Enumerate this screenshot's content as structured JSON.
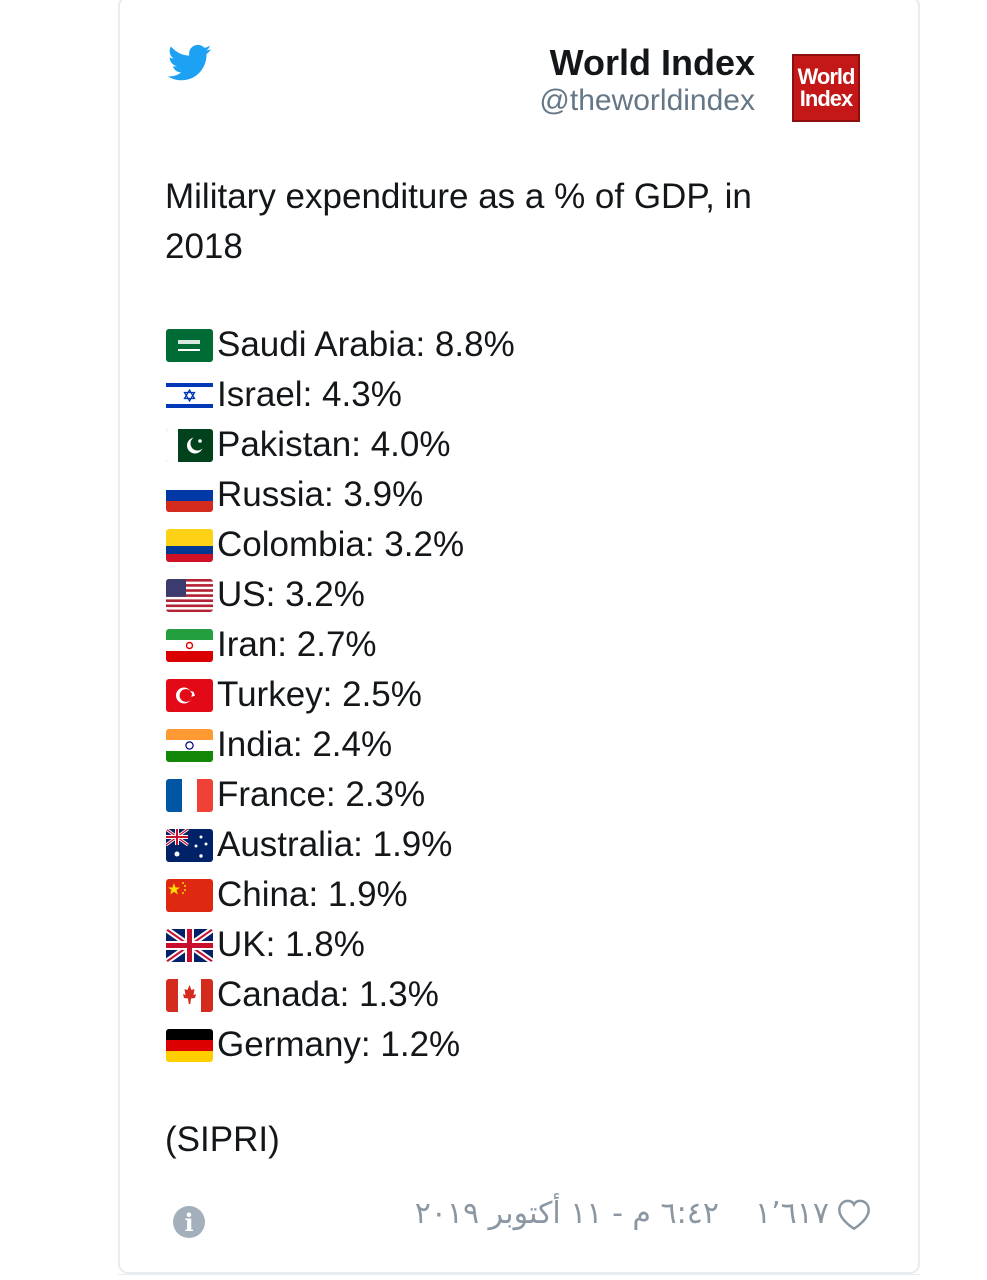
{
  "author": {
    "name": "World Index",
    "handle": "@theworldindex",
    "logo_text": [
      "World",
      "Index"
    ]
  },
  "tweet": {
    "text": "Military expenditure as a % of GDP, in 2018",
    "entries": [
      {
        "flag": "saudi-arabia",
        "label": "Saudi Arabia: 8.8%"
      },
      {
        "flag": "israel",
        "label": "Israel: 4.3%"
      },
      {
        "flag": "pakistan",
        "label": "Pakistan: 4.0%"
      },
      {
        "flag": "russia",
        "label": "Russia: 3.9%"
      },
      {
        "flag": "colombia",
        "label": "Colombia: 3.2%"
      },
      {
        "flag": "us",
        "label": "US: 3.2%"
      },
      {
        "flag": "iran",
        "label": "Iran: 2.7%"
      },
      {
        "flag": "turkey",
        "label": "Turkey: 2.5%"
      },
      {
        "flag": "india",
        "label": "India: 2.4%"
      },
      {
        "flag": "france",
        "label": "France: 2.3%"
      },
      {
        "flag": "australia",
        "label": "Australia: 1.9%"
      },
      {
        "flag": "china",
        "label": "China: 1.9%"
      },
      {
        "flag": "uk",
        "label": "UK: 1.8%"
      },
      {
        "flag": "canada",
        "label": "Canada: 1.3%"
      },
      {
        "flag": "germany",
        "label": "Germany: 1.2%"
      }
    ],
    "source": "(SIPRI)"
  },
  "footer": {
    "timestamp": "٦:٤٢ م - ١١ أكتوبر ٢٠١٩",
    "likes": "١٬٦١٧",
    "icons": [
      "info-icon",
      "heart-icon",
      "twitter-bird-icon"
    ]
  },
  "colors": {
    "twitter_blue": "#1da1f2",
    "logo_red": "#c41717",
    "muted_text": "#8a96a1"
  }
}
